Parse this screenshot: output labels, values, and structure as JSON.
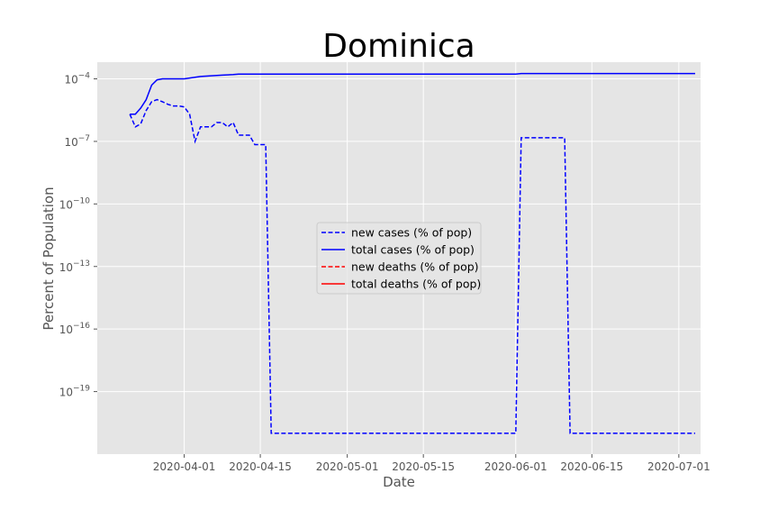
{
  "chart_data": {
    "type": "line",
    "title": "Dominica",
    "xlabel": "Date",
    "ylabel": "Percent of Population",
    "yscale": "log",
    "xlim": [
      "2020-03-16",
      "2020-07-05"
    ],
    "ylim_exponent": [
      -22,
      -3.2
    ],
    "x_ticks": [
      "2020-04-01",
      "2020-04-15",
      "2020-05-01",
      "2020-05-15",
      "2020-06-01",
      "2020-06-15",
      "2020-07-01"
    ],
    "y_ticks": [
      {
        "base": "10",
        "exp": "−19",
        "value": 1e-19
      },
      {
        "base": "10",
        "exp": "−16",
        "value": 1e-16
      },
      {
        "base": "10",
        "exp": "−13",
        "value": 1e-13
      },
      {
        "base": "10",
        "exp": "−10",
        "value": 1e-10
      },
      {
        "base": "10",
        "exp": "−7",
        "value": 1e-07
      },
      {
        "base": "10",
        "exp": "−4",
        "value": 0.0001
      }
    ],
    "grid": true,
    "legend_position": "center",
    "series": [
      {
        "name": "new cases (% of pop)",
        "color": "#0000ff",
        "dash": "dashed",
        "points": [
          [
            "2020-03-22",
            2e-06
          ],
          [
            "2020-03-23",
            5e-07
          ],
          [
            "2020-03-24",
            7e-07
          ],
          [
            "2020-03-25",
            3e-06
          ],
          [
            "2020-03-26",
            8e-06
          ],
          [
            "2020-03-27",
            1e-05
          ],
          [
            "2020-03-28",
            8e-06
          ],
          [
            "2020-03-29",
            6e-06
          ],
          [
            "2020-03-30",
            5e-06
          ],
          [
            "2020-03-31",
            5e-06
          ],
          [
            "2020-04-01",
            4.5e-06
          ],
          [
            "2020-04-02",
            2e-06
          ],
          [
            "2020-04-03",
            1e-07
          ],
          [
            "2020-04-04",
            5e-07
          ],
          [
            "2020-04-05",
            5e-07
          ],
          [
            "2020-04-06",
            5e-07
          ],
          [
            "2020-04-07",
            8e-07
          ],
          [
            "2020-04-08",
            8e-07
          ],
          [
            "2020-04-09",
            5e-07
          ],
          [
            "2020-04-10",
            8e-07
          ],
          [
            "2020-04-11",
            2e-07
          ],
          [
            "2020-04-12",
            2e-07
          ],
          [
            "2020-04-13",
            2e-07
          ],
          [
            "2020-04-14",
            7e-08
          ],
          [
            "2020-04-15",
            7e-08
          ],
          [
            "2020-04-16",
            7e-08
          ],
          [
            "2020-04-17",
            1e-21
          ],
          [
            "2020-06-01",
            1e-21
          ],
          [
            "2020-06-02",
            1.5e-07
          ],
          [
            "2020-06-10",
            1.5e-07
          ],
          [
            "2020-06-11",
            1e-21
          ],
          [
            "2020-07-04",
            1e-21
          ]
        ]
      },
      {
        "name": "total cases (% of pop)",
        "color": "#0000ff",
        "dash": "solid",
        "points": [
          [
            "2020-03-22",
            2e-06
          ],
          [
            "2020-03-23",
            2e-06
          ],
          [
            "2020-03-24",
            4e-06
          ],
          [
            "2020-03-25",
            1e-05
          ],
          [
            "2020-03-26",
            5e-05
          ],
          [
            "2020-03-27",
            9e-05
          ],
          [
            "2020-03-28",
            0.0001
          ],
          [
            "2020-04-01",
            0.0001
          ],
          [
            "2020-04-02",
            0.00011
          ],
          [
            "2020-04-03",
            0.00012
          ],
          [
            "2020-04-04",
            0.00013
          ],
          [
            "2020-04-06",
            0.00014
          ],
          [
            "2020-04-08",
            0.00015
          ],
          [
            "2020-04-10",
            0.00016
          ],
          [
            "2020-04-11",
            0.00017
          ],
          [
            "2020-06-01",
            0.00017
          ],
          [
            "2020-06-02",
            0.00018
          ],
          [
            "2020-07-04",
            0.00018
          ]
        ]
      },
      {
        "name": "new deaths (% of pop)",
        "color": "#ff0000",
        "dash": "dashed",
        "points": []
      },
      {
        "name": "total deaths (% of pop)",
        "color": "#ff0000",
        "dash": "solid",
        "points": []
      }
    ]
  }
}
